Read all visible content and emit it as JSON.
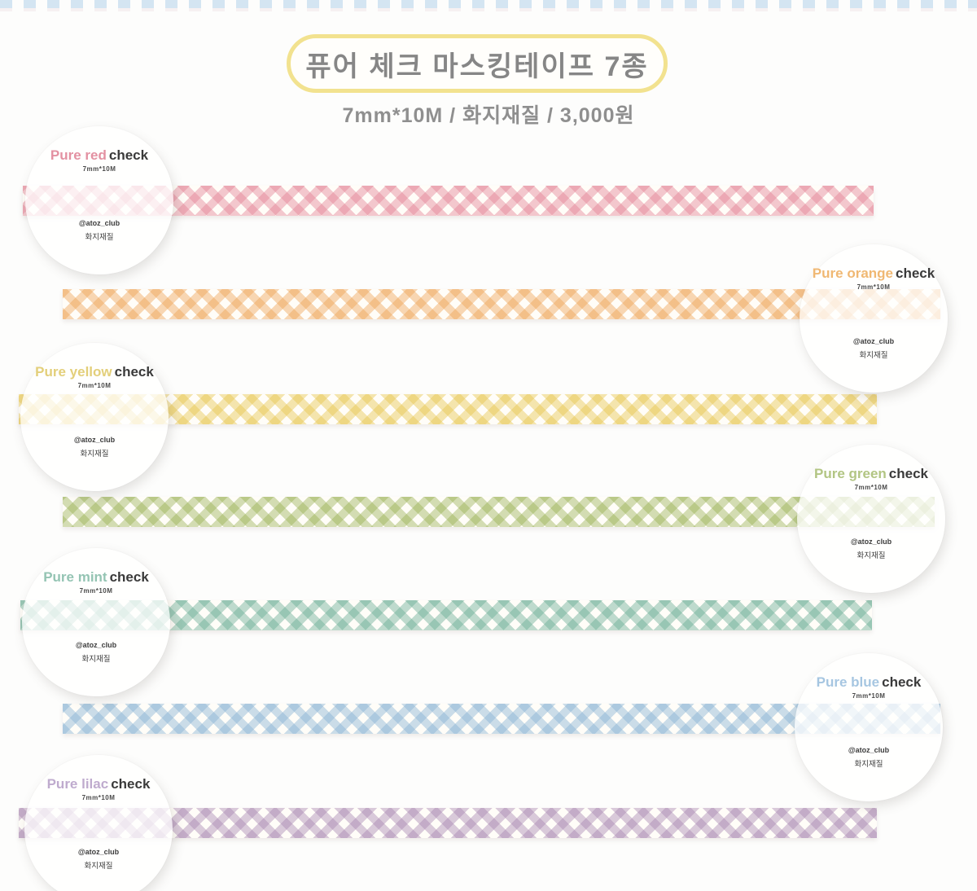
{
  "page": {
    "title": "퓨어 체크 마스킹테이프 7종",
    "subtitle": "7mm*10M / 화지재질 / 3,000원",
    "background_color": "#fdfdfc",
    "title_border_color": "#f2e28f",
    "title_text_color": "#868686",
    "top_border_color": "#cde1f1"
  },
  "tapes": [
    {
      "id": "red",
      "name_colored": "Pure red",
      "name_bold": "check",
      "size": "7mm*10M",
      "handle": "@atoz_club",
      "material": "화지재질",
      "accent": "#e391a2",
      "tape_color": "#e27d91",
      "label_side": "left"
    },
    {
      "id": "orange",
      "name_colored": "Pure orange",
      "name_bold": "check",
      "size": "7mm*10M",
      "handle": "@atoz_club",
      "material": "화지재질",
      "accent": "#f0b873",
      "tape_color": "#eda050",
      "label_side": "right"
    },
    {
      "id": "yellow",
      "name_colored": "Pure yellow",
      "name_bold": "check",
      "size": "7mm*10M",
      "handle": "@atoz_club",
      "material": "화지재질",
      "accent": "#e3cf7a",
      "tape_color": "#e6c346",
      "label_side": "left"
    },
    {
      "id": "green",
      "name_colored": "Pure green",
      "name_bold": "check",
      "size": "7mm*10M",
      "handle": "@atoz_club",
      "material": "화지재질",
      "accent": "#b2c583",
      "tape_color": "#96af50",
      "label_side": "right"
    },
    {
      "id": "mint",
      "name_colored": "Pure mint",
      "name_bold": "check",
      "size": "7mm*10M",
      "handle": "@atoz_club",
      "material": "화지재질",
      "accent": "#94c4b3",
      "tape_color": "#64aa91",
      "label_side": "left"
    },
    {
      "id": "blue",
      "name_colored": "Pure blue",
      "name_bold": "check",
      "size": "7mm*10M",
      "handle": "@atoz_club",
      "material": "화지재질",
      "accent": "#a6c6e1",
      "tape_color": "#82afd2",
      "label_side": "right"
    },
    {
      "id": "lilac",
      "name_colored": "Pure lilac",
      "name_bold": "check",
      "size": "7mm*10M",
      "handle": "@atoz_club",
      "material": "화지재질",
      "accent": "#bfabce",
      "tape_color": "#a582af",
      "label_side": "left"
    }
  ]
}
